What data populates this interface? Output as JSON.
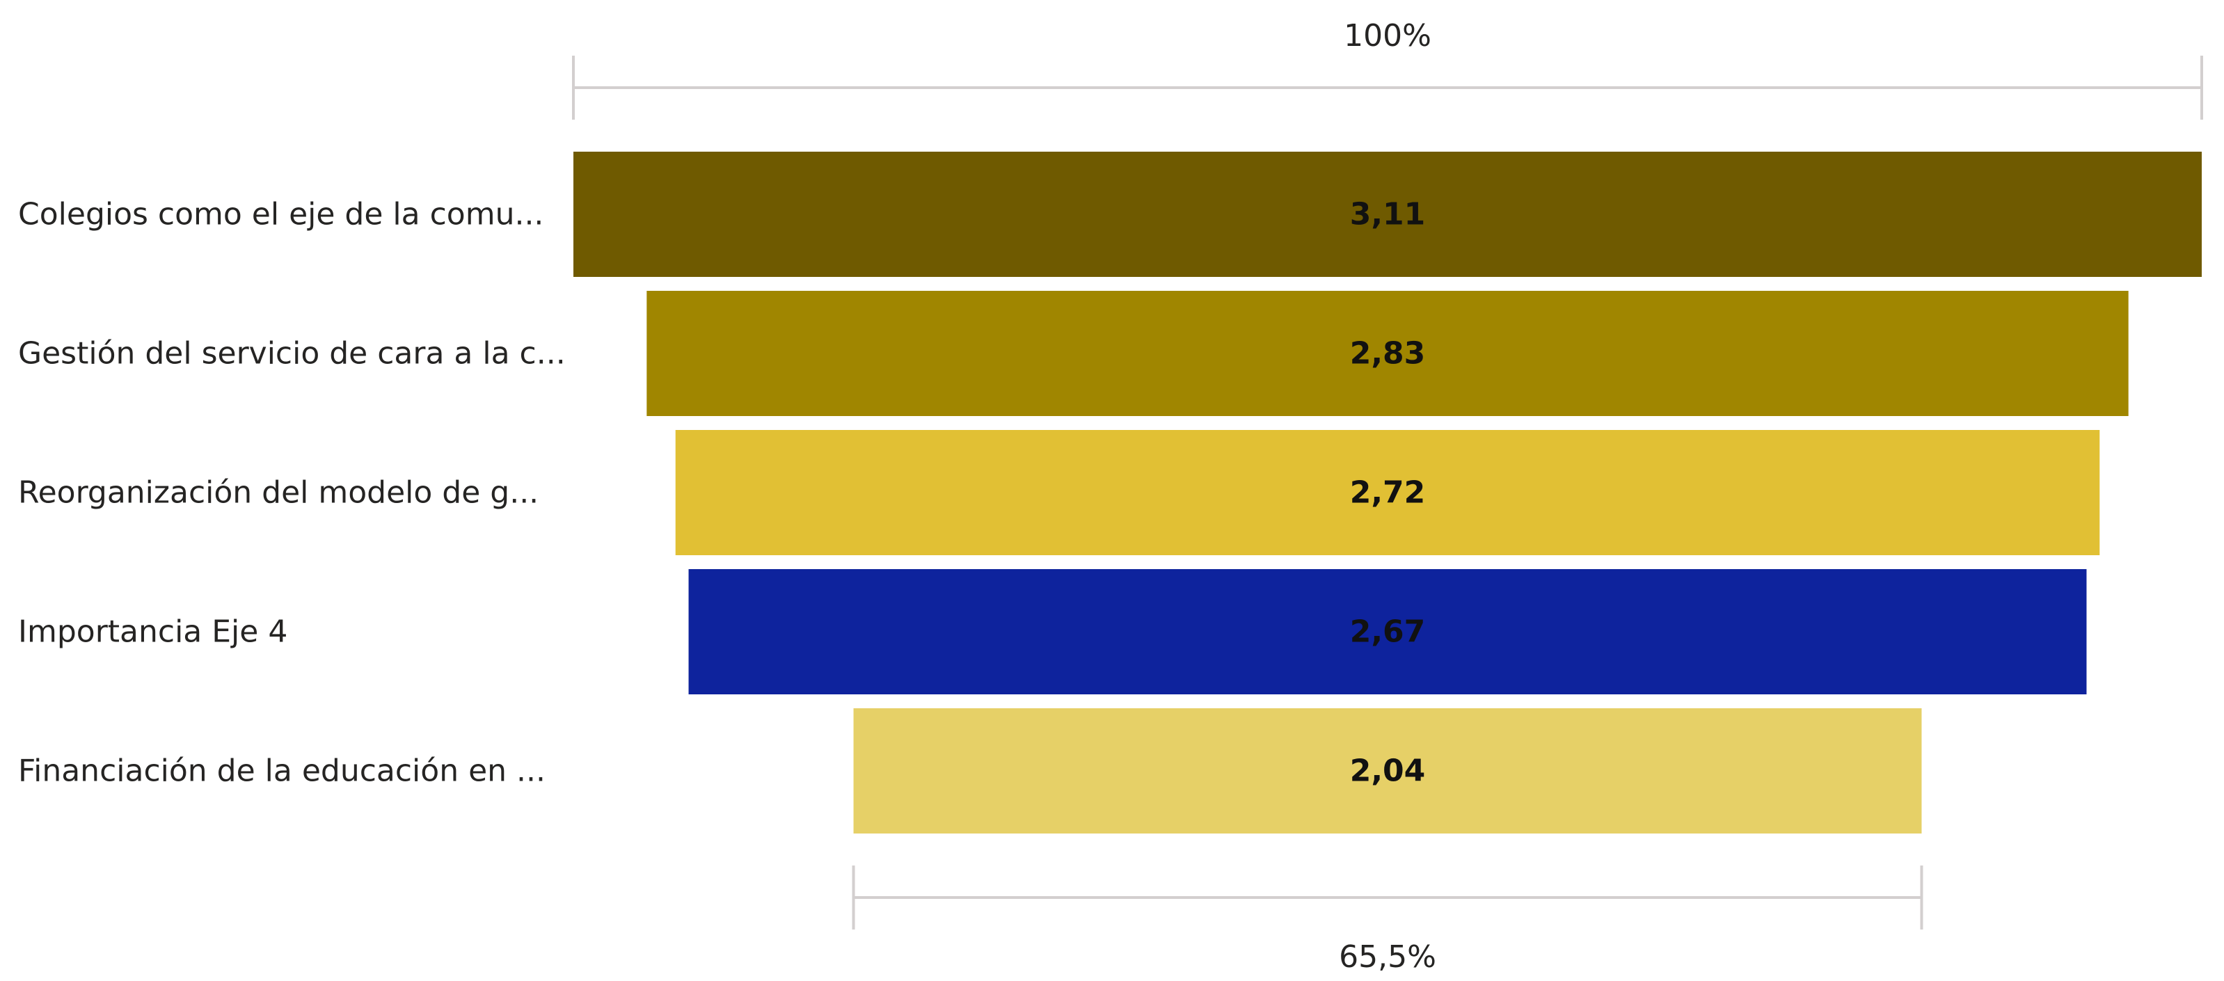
{
  "chart_data": {
    "type": "funnel",
    "categories": [
      "Colegios como el eje de la comu...",
      "Gestión del servicio de cara a la c...",
      "Reorganización del modelo de g...",
      "Importancia Eje 4",
      "Financiación de la educación en ..."
    ],
    "values": [
      3.11,
      2.83,
      2.72,
      2.67,
      2.04
    ],
    "value_labels": [
      "3,11",
      "2,83",
      "2,72",
      "2,67",
      "2,04"
    ],
    "colors": [
      "#6f5a00",
      "#a08600",
      "#e1c034",
      "#0e239d",
      "#e6d067"
    ],
    "top_percent_label": "100%",
    "bottom_percent_label": "65,5%",
    "grid": false,
    "legend": "none"
  }
}
